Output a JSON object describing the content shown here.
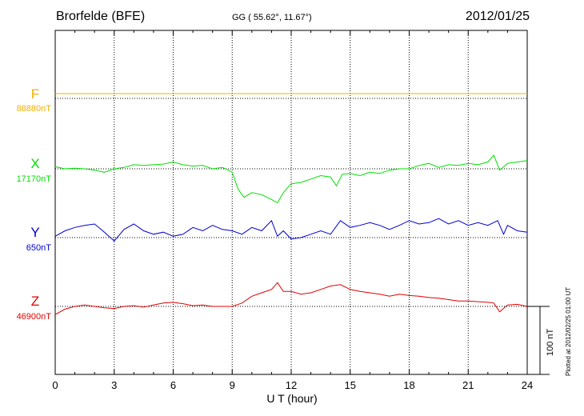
{
  "header": {
    "station": "Brorfelde (BFE)",
    "coords": "GG ( 55.62°,  11.67°)",
    "date": "2012/01/25"
  },
  "footer": {
    "plotted": "Plotted at 2012/02/25 01:00 UT"
  },
  "chart_data": {
    "type": "line",
    "xlabel": "U T (hour)",
    "xlim": [
      0,
      24
    ],
    "xticks": [
      0,
      3,
      6,
      9,
      12,
      15,
      18,
      21,
      24
    ],
    "xtick_labels": [
      "0",
      "3",
      "6",
      "9",
      "12",
      "15",
      "18",
      "21",
      "24"
    ],
    "grid": "dotted vertical at 3-hour steps",
    "scale_bar": {
      "value_nT": 100,
      "label": "100 nT"
    },
    "series": [
      {
        "name": "F",
        "baseline_label": "88880nT",
        "color": "#f0b000",
        "x": [
          0,
          24
        ],
        "y": [
          88880,
          88880
        ],
        "y_offset": [
          14,
          14
        ],
        "_note_none": ""
      },
      {
        "name": "X",
        "baseline_label": "17170nT",
        "color": "#00e000",
        "x": [
          0,
          0.5,
          1,
          1.5,
          2,
          2.5,
          3,
          3.5,
          4,
          4.5,
          5,
          5.5,
          6,
          6.5,
          7,
          7.5,
          8,
          8.5,
          9,
          9.3,
          9.6,
          10,
          10.5,
          11,
          11.3,
          11.6,
          12,
          12.5,
          13,
          13.5,
          14,
          14.3,
          14.6,
          15,
          15.5,
          16,
          16.5,
          17,
          17.5,
          18,
          18.5,
          19,
          19.5,
          20,
          20.5,
          21,
          21.5,
          22,
          22.3,
          22.6,
          23,
          23.5,
          24
        ],
        "y": [
          17173,
          17170,
          17171,
          17170,
          17168,
          17165,
          17170,
          17172,
          17176,
          17175,
          17176,
          17177,
          17180,
          17176,
          17174,
          17175,
          17170,
          17172,
          17165,
          17140,
          17128,
          17135,
          17132,
          17125,
          17120,
          17135,
          17148,
          17150,
          17155,
          17160,
          17158,
          17145,
          17162,
          17163,
          17160,
          17165,
          17163,
          17168,
          17170,
          17170,
          17175,
          17178,
          17172,
          17176,
          17175,
          17178,
          17176,
          17180,
          17190,
          17168,
          17178,
          17180,
          17182
        ]
      },
      {
        "name": "Y",
        "baseline_label": "650nT",
        "color": "#0000d0",
        "x": [
          0,
          0.5,
          1,
          1.5,
          2,
          2.5,
          3,
          3.5,
          4,
          4.5,
          5,
          5.5,
          6,
          6.5,
          7,
          7.5,
          8,
          8.5,
          9,
          9.5,
          10,
          10.5,
          11,
          11.3,
          11.6,
          12,
          12.5,
          13,
          13.5,
          14,
          14.5,
          15,
          15.5,
          16,
          16.5,
          17,
          17.5,
          18,
          18.5,
          19,
          19.5,
          20,
          20.5,
          21,
          21.5,
          22,
          22.5,
          22.8,
          23,
          23.5,
          24
        ],
        "y": [
          652,
          660,
          665,
          668,
          670,
          658,
          645,
          662,
          670,
          660,
          655,
          658,
          652,
          655,
          665,
          660,
          668,
          662,
          660,
          655,
          665,
          660,
          675,
          652,
          660,
          648,
          650,
          655,
          660,
          655,
          675,
          665,
          668,
          672,
          668,
          662,
          668,
          675,
          670,
          672,
          678,
          670,
          675,
          668,
          672,
          668,
          675,
          655,
          668,
          660,
          658
        ]
      },
      {
        "name": "Z",
        "baseline_label": "46900nT",
        "color": "#e00000",
        "x": [
          0,
          0.5,
          1,
          1.5,
          2,
          2.5,
          3,
          3.5,
          4,
          4.5,
          5,
          5.5,
          6,
          6.5,
          7,
          7.5,
          8,
          8.5,
          9,
          9.5,
          10,
          10.5,
          11,
          11.3,
          11.6,
          12,
          12.5,
          13,
          13.5,
          14,
          14.5,
          15,
          15.5,
          16,
          16.5,
          17,
          17.5,
          18,
          18.5,
          19,
          19.5,
          20,
          20.5,
          21,
          21.5,
          22,
          22.3,
          22.6,
          23,
          23.5,
          24
        ],
        "y": [
          46888,
          46896,
          46900,
          46902,
          46900,
          46898,
          46897,
          46900,
          46901,
          46899,
          46902,
          46905,
          46906,
          46904,
          46901,
          46902,
          46900,
          46900,
          46900,
          46905,
          46915,
          46920,
          46925,
          46935,
          46922,
          46922,
          46918,
          46920,
          46925,
          46930,
          46932,
          46925,
          46922,
          46920,
          46918,
          46915,
          46918,
          46916,
          46915,
          46913,
          46912,
          46910,
          46908,
          46908,
          46907,
          46906,
          46905,
          46892,
          46902,
          46903,
          46900
        ]
      }
    ]
  }
}
